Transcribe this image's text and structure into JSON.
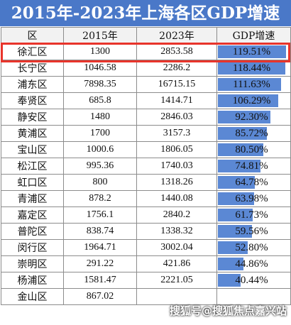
{
  "title": "2015年-2023年上海各区GDP增速",
  "chart_data": {
    "type": "table",
    "columns": [
      "区",
      "2015年",
      "2023年",
      "GDP增速"
    ],
    "rows": [
      {
        "district": "徐汇区",
        "gdp_2015": "1300",
        "gdp_2023": "2853.58",
        "growth": "119.51%",
        "growth_value": 119.51
      },
      {
        "district": "长宁区",
        "gdp_2015": "1046.58",
        "gdp_2023": "2286.2",
        "growth": "118.44%",
        "growth_value": 118.44
      },
      {
        "district": "浦东区",
        "gdp_2015": "7898.35",
        "gdp_2023": "16715.15",
        "growth": "111.63%",
        "growth_value": 111.63
      },
      {
        "district": "奉贤区",
        "gdp_2015": "685.8",
        "gdp_2023": "1414.71",
        "growth": "106.29%",
        "growth_value": 106.29
      },
      {
        "district": "静安区",
        "gdp_2015": "1480",
        "gdp_2023": "2846.03",
        "growth": "92.30%",
        "growth_value": 92.3
      },
      {
        "district": "黄浦区",
        "gdp_2015": "1700",
        "gdp_2023": "3157.3",
        "growth": "85.72%",
        "growth_value": 85.72
      },
      {
        "district": "宝山区",
        "gdp_2015": "1000.6",
        "gdp_2023": "1806.05",
        "growth": "80.50%",
        "growth_value": 80.5
      },
      {
        "district": "松江区",
        "gdp_2015": "995.36",
        "gdp_2023": "1740.03",
        "growth": "74.81%",
        "growth_value": 74.81
      },
      {
        "district": "虹口区",
        "gdp_2015": "800",
        "gdp_2023": "1318.26",
        "growth": "64.78%",
        "growth_value": 64.78
      },
      {
        "district": "青浦区",
        "gdp_2015": "878.2",
        "gdp_2023": "1440.08",
        "growth": "63.98%",
        "growth_value": 63.98
      },
      {
        "district": "嘉定区",
        "gdp_2015": "1756.1",
        "gdp_2023": "2840.2",
        "growth": "61.73%",
        "growth_value": 61.73
      },
      {
        "district": "普陀区",
        "gdp_2015": "838.74",
        "gdp_2023": "1338.32",
        "growth": "59.56%",
        "growth_value": 59.56
      },
      {
        "district": "闵行区",
        "gdp_2015": "1964.71",
        "gdp_2023": "3002.04",
        "growth": "52.80%",
        "growth_value": 52.8
      },
      {
        "district": "崇明区",
        "gdp_2015": "291.22",
        "gdp_2023": "421.86",
        "growth": "44.86%",
        "growth_value": 44.86
      },
      {
        "district": "杨浦区",
        "gdp_2015": "1581.47",
        "gdp_2023": "2221.05",
        "growth": "40.44%",
        "growth_value": 40.44
      },
      {
        "district": "金山区",
        "gdp_2015": "867.02",
        "gdp_2023": "",
        "growth": "",
        "growth_value": null
      }
    ],
    "highlighted_row": 0
  },
  "colors": {
    "title_bg": "#4a78c8",
    "bar": "#5b88d4",
    "highlight": "#e8342b"
  },
  "watermark": "搜狐号@搜狐焦点嘉兴站"
}
